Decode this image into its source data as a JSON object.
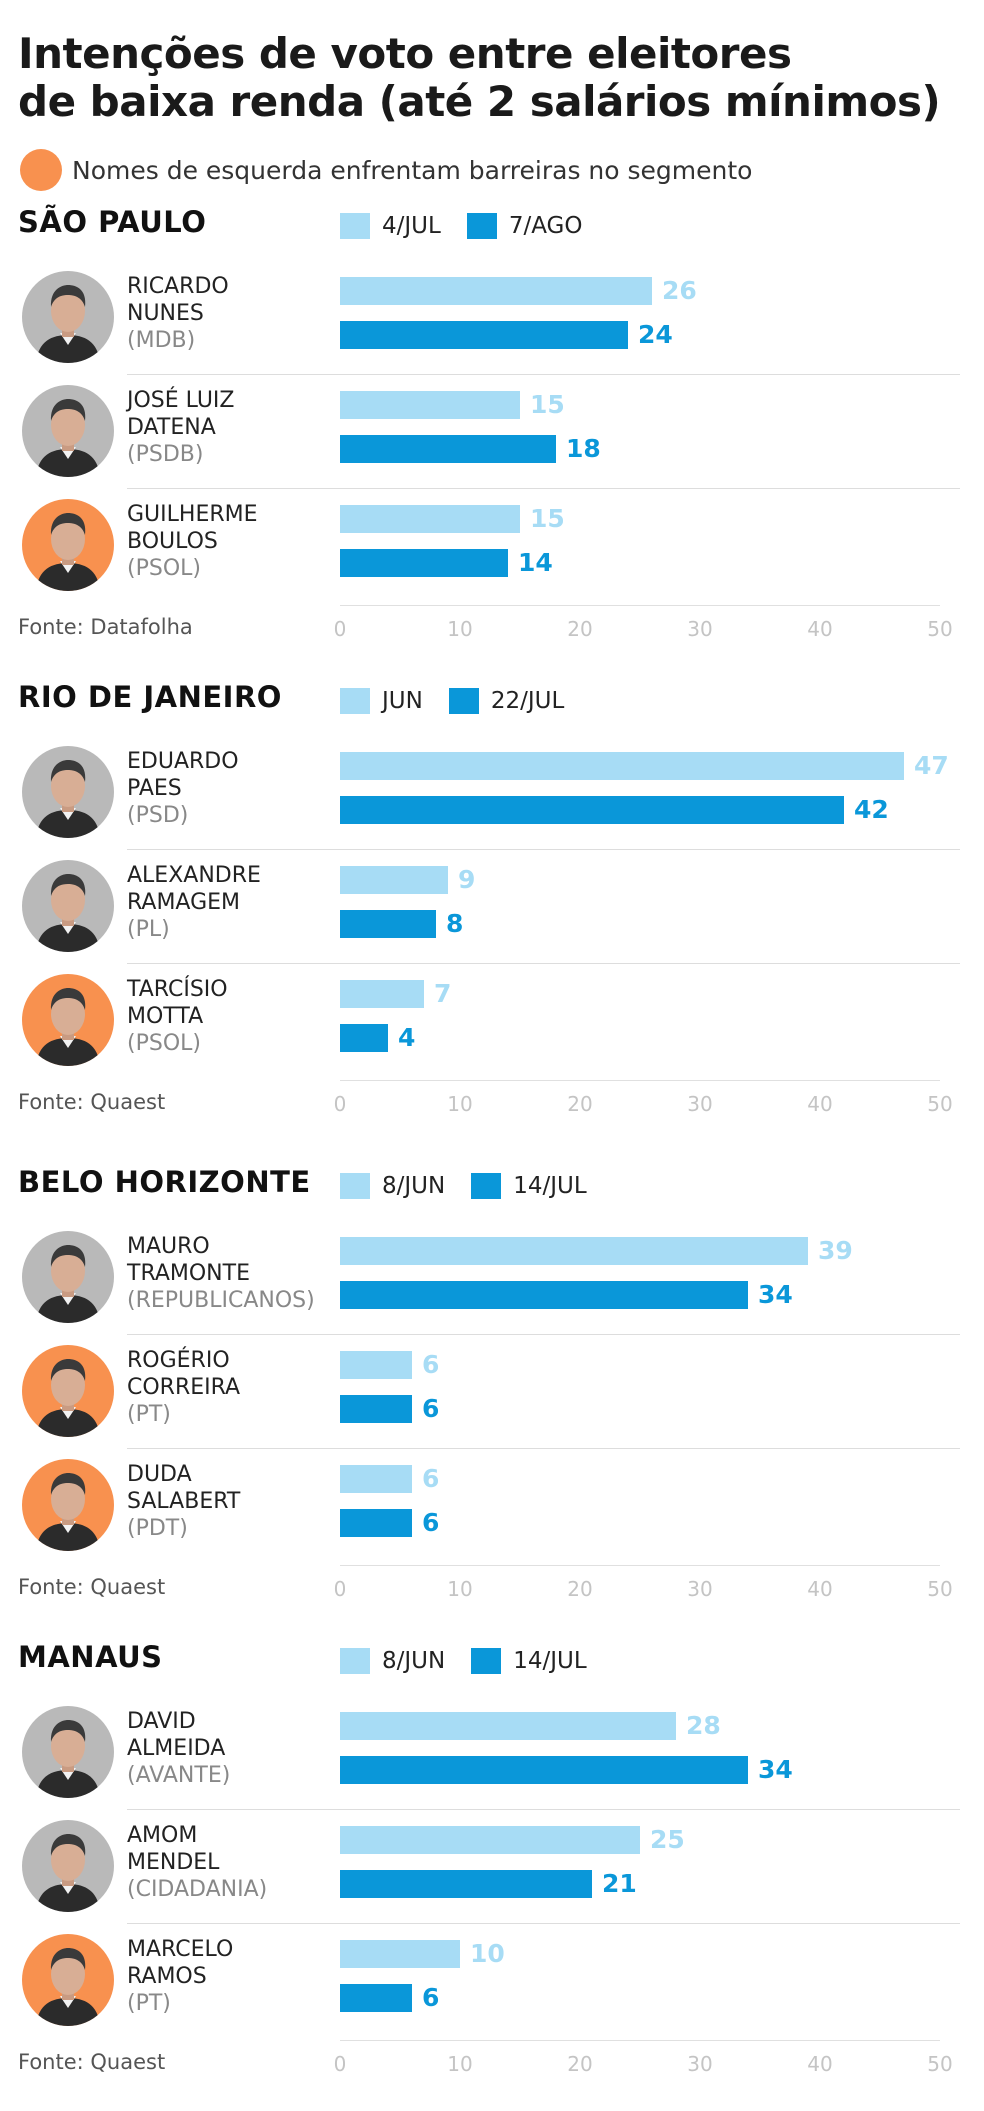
{
  "header": {
    "title_line1": "Intenções de voto entre eleitores",
    "title_line2": "de baixa renda (até 2 salários mínimos)",
    "note": "Nomes de esquerda enfrentam barreiras no segmento"
  },
  "colors": {
    "earlier": "#a7dcf5",
    "later": "#0a97d9",
    "left_highlight": "#f8914f"
  },
  "chart_data": [
    {
      "type": "bar",
      "title": "SÃO PAULO",
      "legend": [
        "4/JUL",
        "7/AGO"
      ],
      "ticks": [
        "0",
        "10",
        "20",
        "30",
        "40",
        "50"
      ],
      "xlim": [
        0,
        50
      ],
      "source": "Fonte: Datafolha",
      "candidates": [
        {
          "line1": "RICARDO",
          "line2": "NUNES",
          "party": "(MDB)",
          "left": false,
          "values": [
            26,
            24
          ]
        },
        {
          "line1": "JOSÉ LUIZ",
          "line2": "DATENA",
          "party": "(PSDB)",
          "left": false,
          "values": [
            15,
            18
          ]
        },
        {
          "line1": "GUILHERME",
          "line2": "BOULOS",
          "party": "(PSOL)",
          "left": true,
          "values": [
            15,
            14
          ]
        }
      ]
    },
    {
      "type": "bar",
      "title": "RIO DE JANEIRO",
      "legend": [
        "JUN",
        "22/JUL"
      ],
      "ticks": [
        "0",
        "10",
        "20",
        "30",
        "40",
        "50"
      ],
      "xlim": [
        0,
        50
      ],
      "source": "Fonte: Quaest",
      "candidates": [
        {
          "line1": "EDUARDO",
          "line2": "PAES",
          "party": "(PSD)",
          "left": false,
          "values": [
            47,
            42
          ]
        },
        {
          "line1": "ALEXANDRE",
          "line2": "RAMAGEM",
          "party": "(PL)",
          "left": false,
          "values": [
            9,
            8
          ]
        },
        {
          "line1": "TARCÍSIO",
          "line2": "MOTTA",
          "party": "(PSOL)",
          "left": true,
          "values": [
            7,
            4
          ]
        }
      ]
    },
    {
      "type": "bar",
      "title": "BELO HORIZONTE",
      "legend": [
        "8/JUN",
        "14/JUL"
      ],
      "ticks": [
        "0",
        "10",
        "20",
        "30",
        "40",
        "50"
      ],
      "xlim": [
        0,
        50
      ],
      "source": "Fonte: Quaest",
      "candidates": [
        {
          "line1": "MAURO",
          "line2": "TRAMONTE",
          "party": "(REPUBLICANOS)",
          "left": false,
          "values": [
            39,
            34
          ]
        },
        {
          "line1": "ROGÉRIO",
          "line2": "CORREIRA",
          "party": "(PT)",
          "left": true,
          "values": [
            6,
            6
          ]
        },
        {
          "line1": "DUDA",
          "line2": "SALABERT",
          "party": "(PDT)",
          "left": true,
          "values": [
            6,
            6
          ]
        }
      ]
    },
    {
      "type": "bar",
      "title": "MANAUS",
      "legend": [
        "8/JUN",
        "14/JUL"
      ],
      "ticks": [
        "0",
        "10",
        "20",
        "30",
        "40",
        "50"
      ],
      "xlim": [
        0,
        50
      ],
      "source": "Fonte: Quaest",
      "candidates": [
        {
          "line1": "DAVID",
          "line2": "ALMEIDA",
          "party": "(AVANTE)",
          "left": false,
          "values": [
            28,
            34
          ]
        },
        {
          "line1": "AMOM",
          "line2": "MENDEL",
          "party": "(CIDADANIA)",
          "left": false,
          "values": [
            25,
            21
          ]
        },
        {
          "line1": "MARCELO",
          "line2": "RAMOS",
          "party": "(PT)",
          "left": true,
          "values": [
            10,
            6
          ]
        }
      ]
    }
  ]
}
